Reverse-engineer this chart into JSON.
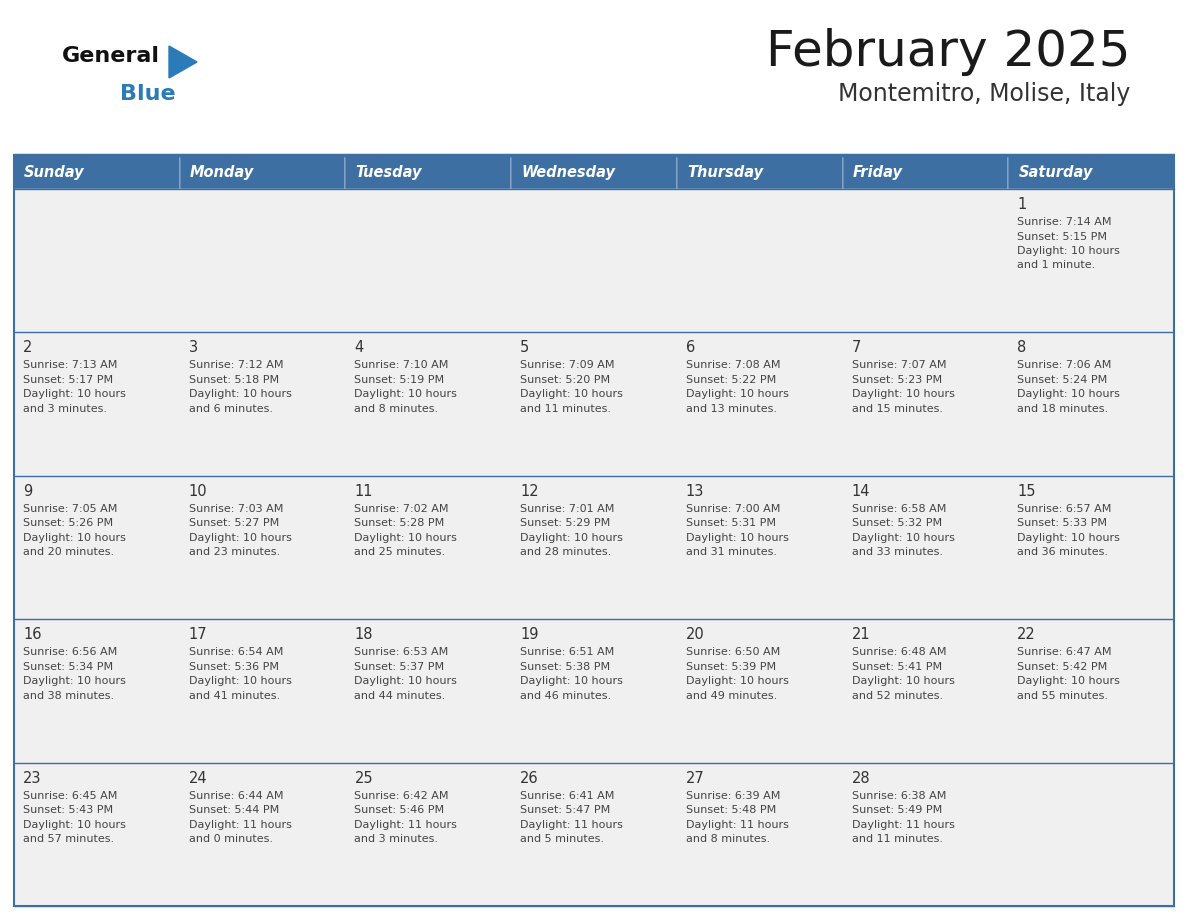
{
  "title": "February 2025",
  "subtitle": "Montemitro, Molise, Italy",
  "header_bg_color": "#3D6FA3",
  "header_text_color": "#FFFFFF",
  "row_bg": "#F0F0F0",
  "border_color": "#3D6FA3",
  "separator_color": "#3D6FA3",
  "day_headers": [
    "Sunday",
    "Monday",
    "Tuesday",
    "Wednesday",
    "Thursday",
    "Friday",
    "Saturday"
  ],
  "title_color": "#1a1a1a",
  "subtitle_color": "#333333",
  "day_number_color": "#333333",
  "cell_text_color": "#444444",
  "logo_general_color": "#111111",
  "logo_blue_color": "#2B7BB9",
  "logo_triangle_color": "#2B7BB9",
  "calendar_data": [
    [
      null,
      null,
      null,
      null,
      null,
      null,
      {
        "day": 1,
        "sunrise": "7:14 AM",
        "sunset": "5:15 PM",
        "daylight": "10 hours and 1 minute."
      }
    ],
    [
      {
        "day": 2,
        "sunrise": "7:13 AM",
        "sunset": "5:17 PM",
        "daylight": "10 hours and 3 minutes."
      },
      {
        "day": 3,
        "sunrise": "7:12 AM",
        "sunset": "5:18 PM",
        "daylight": "10 hours and 6 minutes."
      },
      {
        "day": 4,
        "sunrise": "7:10 AM",
        "sunset": "5:19 PM",
        "daylight": "10 hours and 8 minutes."
      },
      {
        "day": 5,
        "sunrise": "7:09 AM",
        "sunset": "5:20 PM",
        "daylight": "10 hours and 11 minutes."
      },
      {
        "day": 6,
        "sunrise": "7:08 AM",
        "sunset": "5:22 PM",
        "daylight": "10 hours and 13 minutes."
      },
      {
        "day": 7,
        "sunrise": "7:07 AM",
        "sunset": "5:23 PM",
        "daylight": "10 hours and 15 minutes."
      },
      {
        "day": 8,
        "sunrise": "7:06 AM",
        "sunset": "5:24 PM",
        "daylight": "10 hours and 18 minutes."
      }
    ],
    [
      {
        "day": 9,
        "sunrise": "7:05 AM",
        "sunset": "5:26 PM",
        "daylight": "10 hours and 20 minutes."
      },
      {
        "day": 10,
        "sunrise": "7:03 AM",
        "sunset": "5:27 PM",
        "daylight": "10 hours and 23 minutes."
      },
      {
        "day": 11,
        "sunrise": "7:02 AM",
        "sunset": "5:28 PM",
        "daylight": "10 hours and 25 minutes."
      },
      {
        "day": 12,
        "sunrise": "7:01 AM",
        "sunset": "5:29 PM",
        "daylight": "10 hours and 28 minutes."
      },
      {
        "day": 13,
        "sunrise": "7:00 AM",
        "sunset": "5:31 PM",
        "daylight": "10 hours and 31 minutes."
      },
      {
        "day": 14,
        "sunrise": "6:58 AM",
        "sunset": "5:32 PM",
        "daylight": "10 hours and 33 minutes."
      },
      {
        "day": 15,
        "sunrise": "6:57 AM",
        "sunset": "5:33 PM",
        "daylight": "10 hours and 36 minutes."
      }
    ],
    [
      {
        "day": 16,
        "sunrise": "6:56 AM",
        "sunset": "5:34 PM",
        "daylight": "10 hours and 38 minutes."
      },
      {
        "day": 17,
        "sunrise": "6:54 AM",
        "sunset": "5:36 PM",
        "daylight": "10 hours and 41 minutes."
      },
      {
        "day": 18,
        "sunrise": "6:53 AM",
        "sunset": "5:37 PM",
        "daylight": "10 hours and 44 minutes."
      },
      {
        "day": 19,
        "sunrise": "6:51 AM",
        "sunset": "5:38 PM",
        "daylight": "10 hours and 46 minutes."
      },
      {
        "day": 20,
        "sunrise": "6:50 AM",
        "sunset": "5:39 PM",
        "daylight": "10 hours and 49 minutes."
      },
      {
        "day": 21,
        "sunrise": "6:48 AM",
        "sunset": "5:41 PM",
        "daylight": "10 hours and 52 minutes."
      },
      {
        "day": 22,
        "sunrise": "6:47 AM",
        "sunset": "5:42 PM",
        "daylight": "10 hours and 55 minutes."
      }
    ],
    [
      {
        "day": 23,
        "sunrise": "6:45 AM",
        "sunset": "5:43 PM",
        "daylight": "10 hours and 57 minutes."
      },
      {
        "day": 24,
        "sunrise": "6:44 AM",
        "sunset": "5:44 PM",
        "daylight": "11 hours and 0 minutes."
      },
      {
        "day": 25,
        "sunrise": "6:42 AM",
        "sunset": "5:46 PM",
        "daylight": "11 hours and 3 minutes."
      },
      {
        "day": 26,
        "sunrise": "6:41 AM",
        "sunset": "5:47 PM",
        "daylight": "11 hours and 5 minutes."
      },
      {
        "day": 27,
        "sunrise": "6:39 AM",
        "sunset": "5:48 PM",
        "daylight": "11 hours and 8 minutes."
      },
      {
        "day": 28,
        "sunrise": "6:38 AM",
        "sunset": "5:49 PM",
        "daylight": "11 hours and 11 minutes."
      },
      null
    ]
  ]
}
